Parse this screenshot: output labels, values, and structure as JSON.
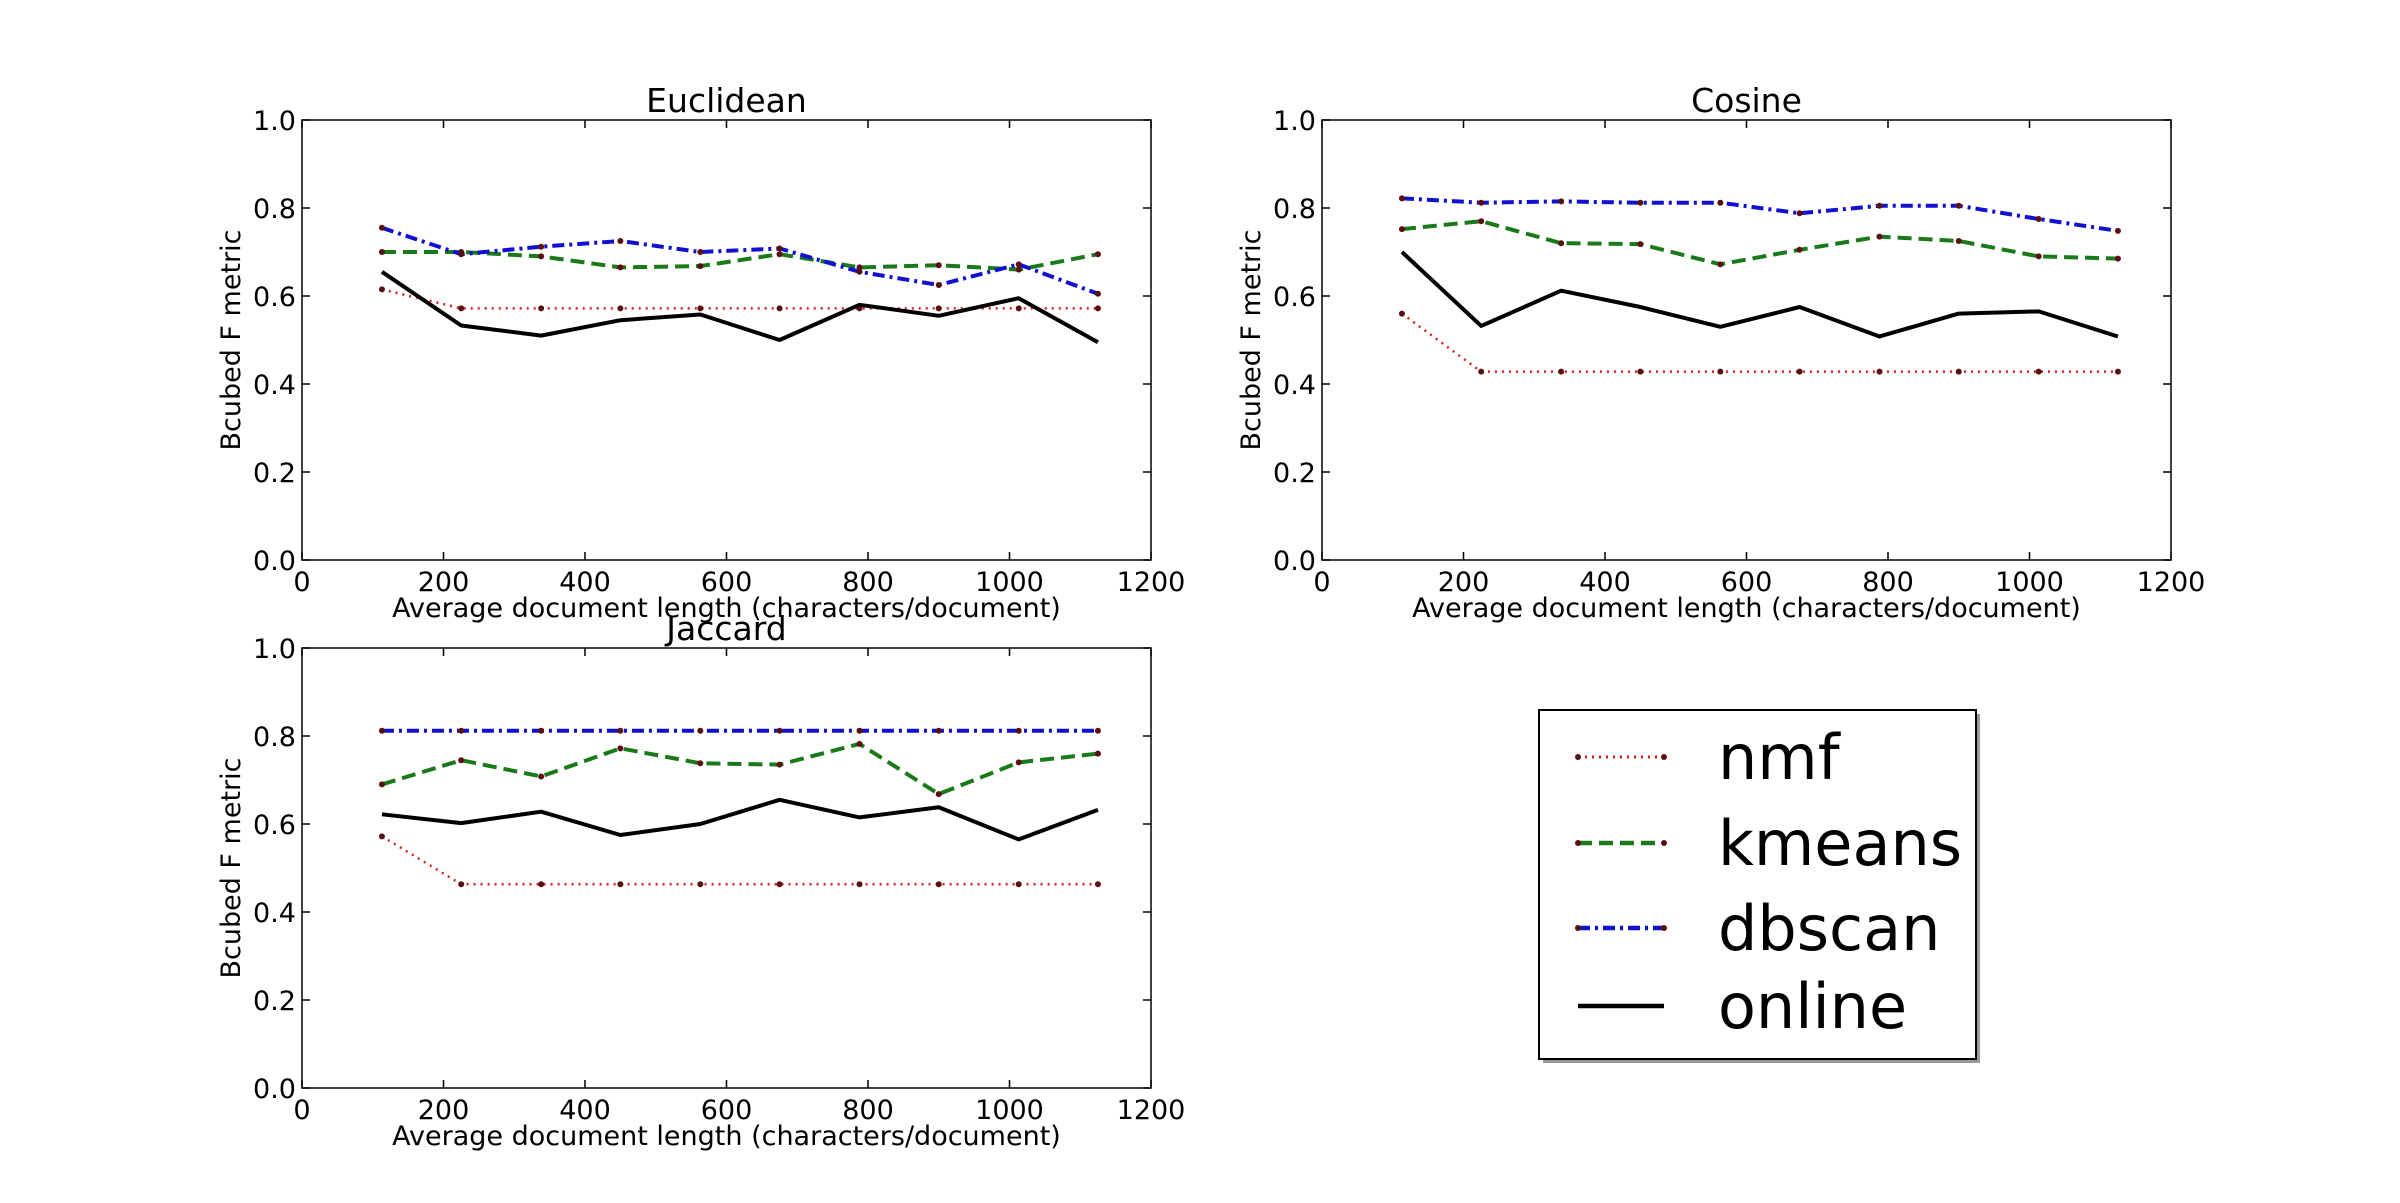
{
  "colors": {
    "nmf": "#d62020",
    "kmeans": "#1a7a1a",
    "dbscan": "#1010d0",
    "online": "#000000"
  },
  "legend": {
    "placement": "bottom-right",
    "entries": [
      {
        "key": "nmf",
        "label": "nmf",
        "style": "dotted"
      },
      {
        "key": "kmeans",
        "label": "kmeans",
        "style": "dashed"
      },
      {
        "key": "dbscan",
        "label": "dbscan",
        "style": "dashdot"
      },
      {
        "key": "online",
        "label": "online",
        "style": "solid"
      }
    ]
  },
  "chart_data": [
    {
      "type": "line",
      "title": "Euclidean",
      "xlabel": "Average document length (characters/document)",
      "ylabel": "Bcubed F metric",
      "xlim": [
        0,
        1200
      ],
      "ylim": [
        0.0,
        1.0
      ],
      "xticks": [
        "0",
        "200",
        "400",
        "600",
        "800",
        "1000",
        "1200"
      ],
      "yticks": [
        "0.0",
        "0.2",
        "0.4",
        "0.6",
        "0.8",
        "1.0"
      ],
      "x": [
        113,
        225,
        338,
        450,
        563,
        675,
        788,
        900,
        1013,
        1125
      ],
      "series": [
        {
          "name": "nmf",
          "values": [
            0.615,
            0.572,
            0.572,
            0.572,
            0.572,
            0.572,
            0.572,
            0.572,
            0.572,
            0.572
          ]
        },
        {
          "name": "kmeans",
          "values": [
            0.7,
            0.7,
            0.69,
            0.665,
            0.668,
            0.695,
            0.665,
            0.67,
            0.66,
            0.695
          ]
        },
        {
          "name": "dbscan",
          "values": [
            0.755,
            0.695,
            0.712,
            0.725,
            0.7,
            0.708,
            0.655,
            0.625,
            0.672,
            0.605
          ]
        },
        {
          "name": "online",
          "values": [
            0.655,
            0.533,
            0.51,
            0.545,
            0.558,
            0.5,
            0.58,
            0.555,
            0.595,
            0.495
          ]
        }
      ]
    },
    {
      "type": "line",
      "title": "Cosine",
      "xlabel": "Average document length (characters/document)",
      "ylabel": "Bcubed F metric",
      "xlim": [
        0,
        1200
      ],
      "ylim": [
        0.0,
        1.0
      ],
      "xticks": [
        "0",
        "200",
        "400",
        "600",
        "800",
        "1000",
        "1200"
      ],
      "yticks": [
        "0.0",
        "0.2",
        "0.4",
        "0.6",
        "0.8",
        "1.0"
      ],
      "x": [
        113,
        225,
        338,
        450,
        563,
        675,
        788,
        900,
        1013,
        1125
      ],
      "series": [
        {
          "name": "nmf",
          "values": [
            0.56,
            0.428,
            0.428,
            0.428,
            0.428,
            0.428,
            0.428,
            0.428,
            0.428,
            0.428
          ]
        },
        {
          "name": "kmeans",
          "values": [
            0.752,
            0.77,
            0.72,
            0.718,
            0.672,
            0.705,
            0.735,
            0.725,
            0.69,
            0.685
          ]
        },
        {
          "name": "dbscan",
          "values": [
            0.822,
            0.812,
            0.815,
            0.812,
            0.812,
            0.788,
            0.805,
            0.805,
            0.775,
            0.748
          ]
        },
        {
          "name": "online",
          "values": [
            0.7,
            0.532,
            0.612,
            0.575,
            0.53,
            0.575,
            0.508,
            0.56,
            0.565,
            0.508
          ]
        }
      ]
    },
    {
      "type": "line",
      "title": "Jaccard",
      "xlabel": "Average document length (characters/document)",
      "ylabel": "Bcubed F metric",
      "xlim": [
        0,
        1200
      ],
      "ylim": [
        0.0,
        1.0
      ],
      "xticks": [
        "0",
        "200",
        "400",
        "600",
        "800",
        "1000",
        "1200"
      ],
      "yticks": [
        "0.0",
        "0.2",
        "0.4",
        "0.6",
        "0.8",
        "1.0"
      ],
      "x": [
        113,
        225,
        338,
        450,
        563,
        675,
        788,
        900,
        1013,
        1125
      ],
      "series": [
        {
          "name": "nmf",
          "values": [
            0.572,
            0.463,
            0.463,
            0.463,
            0.463,
            0.463,
            0.463,
            0.463,
            0.463,
            0.463
          ]
        },
        {
          "name": "kmeans",
          "values": [
            0.69,
            0.745,
            0.708,
            0.772,
            0.738,
            0.735,
            0.782,
            0.668,
            0.74,
            0.76
          ]
        },
        {
          "name": "dbscan",
          "values": [
            0.812,
            0.812,
            0.812,
            0.812,
            0.812,
            0.812,
            0.812,
            0.812,
            0.812,
            0.812
          ]
        },
        {
          "name": "online",
          "values": [
            0.622,
            0.602,
            0.628,
            0.575,
            0.6,
            0.655,
            0.615,
            0.638,
            0.565,
            0.632
          ]
        }
      ]
    }
  ]
}
